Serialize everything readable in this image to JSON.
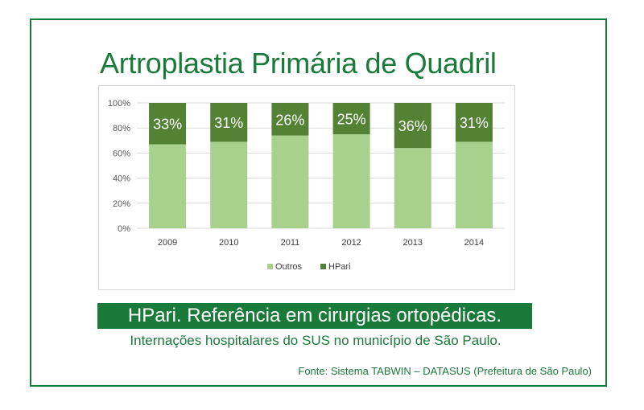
{
  "colors": {
    "brand_green": "#1a7a3a",
    "outros": "#a9d18e",
    "hpari": "#548235",
    "grid": "#d9d9d9",
    "tick_text": "#595959"
  },
  "title": "Artroplastia Primária de Quadril",
  "banner": "HPari. Referência em cirurgias ortopédicas.",
  "subtitle": "Internações hospitalares do SUS no município de São Paulo.",
  "source": "Fonte: Sistema TABWIN – DATASUS (Prefeitura de São Paulo)",
  "chart_data": {
    "type": "bar",
    "stacked": true,
    "percent_stacked": true,
    "categories": [
      "2009",
      "2010",
      "2011",
      "2012",
      "2013",
      "2014"
    ],
    "series": [
      {
        "name": "Outros",
        "values": [
          67,
          69,
          74,
          75,
          64,
          69
        ]
      },
      {
        "name": "HPari",
        "values": [
          33,
          31,
          26,
          25,
          36,
          31
        ]
      }
    ],
    "data_labels": [
      "33%",
      "31%",
      "26%",
      "25%",
      "36%",
      "31%"
    ],
    "y_ticks": [
      "0%",
      "20%",
      "40%",
      "60%",
      "80%",
      "100%"
    ],
    "ylim": [
      0,
      100
    ],
    "grid": true,
    "legend_position": "bottom"
  }
}
